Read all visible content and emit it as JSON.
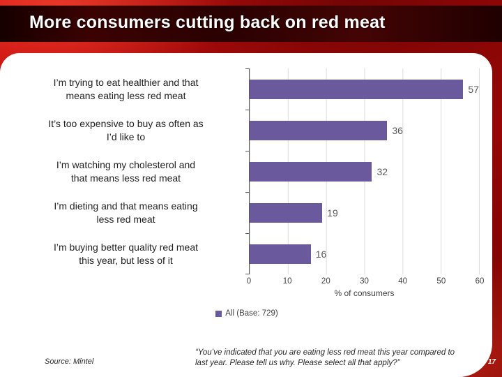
{
  "slide": {
    "title": "More consumers cutting back on red meat",
    "page_number": "17",
    "source": "Source: Mintel",
    "quote": "“You’ve indicated that you are eating less red meat this year compared to last year. Please tell us why. Please select all that apply?”"
  },
  "chart_data": {
    "type": "bar",
    "orientation": "horizontal",
    "title": "",
    "categories": [
      "I’m trying to eat healthier and that\nmeans eating less red meat",
      "It’s too expensive to buy as often as\nI’d like to",
      "I’m watching my cholesterol and\nthat means less red meat",
      "I’m dieting and that means eating\nless red meat",
      "I’m buying better quality red meat\nthis year, but less of it"
    ],
    "values": [
      57,
      36,
      32,
      19,
      16
    ],
    "series_name": "All (Base: 729)",
    "xlabel": "% of consumers",
    "xlim": [
      0,
      60
    ],
    "xticks": [
      0,
      10,
      20,
      30,
      40,
      50,
      60
    ],
    "bar_color": "#6a5a9d",
    "grid": "vertical",
    "legend_position": "bottom"
  }
}
